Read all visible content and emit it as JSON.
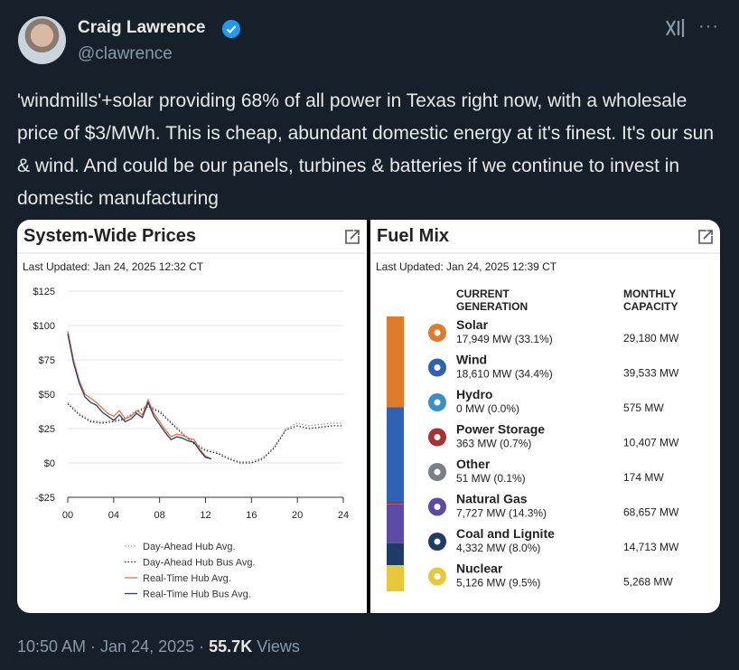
{
  "tweet": {
    "name": "Craig Lawrence",
    "handle": "@clawrence",
    "text": "'windmills'+solar providing 68% of all power in Texas right now, with a wholesale price of $3/MWh. This is cheap, abundant domestic energy at it's finest. It's our sun & wind. And could be our panels, turbines & batteries if we continue to invest in domestic manufacturing",
    "date_line": "10:50 AM · Jan 24, 2025 ·",
    "views": "55.7K",
    "views_label": "Views"
  },
  "chart_data": [
    {
      "type": "line",
      "title": "System-Wide Prices",
      "subtitle": "Last Updated: Jan 24, 2025 12:32 CT",
      "xlim": [
        0,
        24
      ],
      "xticks": [
        {
          "value": 0,
          "label": "00"
        },
        {
          "value": 4,
          "label": "04"
        },
        {
          "value": 8,
          "label": "08"
        },
        12,
        16,
        20,
        24
      ],
      "ylim": [
        -25,
        125
      ],
      "yticks": [
        {
          "value": -25,
          "label": "-$25"
        },
        {
          "value": 0,
          "label": "$0"
        },
        {
          "value": 25,
          "label": "$25"
        },
        {
          "value": 50,
          "label": "$50"
        },
        {
          "value": 75,
          "label": "$75"
        },
        {
          "value": 100,
          "label": "$100"
        },
        {
          "value": 125,
          "label": "$125"
        }
      ],
      "grid": true,
      "series": [
        {
          "name": "Day-Ahead Hub Avg.",
          "color": "#9a9a9a",
          "style": "dotted",
          "x": [
            0,
            1,
            2,
            3,
            4,
            5,
            6,
            7,
            8,
            9,
            10,
            11,
            12,
            13,
            14,
            15,
            16,
            17,
            18,
            19,
            20,
            21,
            22,
            23,
            24
          ],
          "values": [
            44,
            36,
            31,
            30,
            31,
            33,
            38,
            42,
            38,
            30,
            22,
            15,
            10,
            8,
            4,
            1,
            1,
            4,
            12,
            25,
            29,
            27,
            28,
            29,
            29
          ]
        },
        {
          "name": "Day-Ahead Hub Bus Avg.",
          "color": "#222222",
          "style": "dotted",
          "x": [
            0,
            1,
            2,
            3,
            4,
            5,
            6,
            7,
            8,
            9,
            10,
            11,
            12,
            13,
            14,
            15,
            16,
            17,
            18,
            19,
            20,
            21,
            22,
            23,
            24
          ],
          "values": [
            43,
            35,
            30,
            29,
            30,
            32,
            37,
            41,
            37,
            29,
            21,
            14,
            9,
            7,
            3,
            0,
            0,
            3,
            11,
            24,
            27,
            25,
            26,
            27,
            27
          ]
        },
        {
          "name": "Real-Time Hub Avg.",
          "color": "#e8743b",
          "style": "solid",
          "x": [
            0,
            0.5,
            1,
            1.5,
            2,
            2.5,
            3,
            3.5,
            4,
            4.5,
            5,
            5.5,
            6,
            6.5,
            7,
            7.5,
            8,
            8.5,
            9,
            9.5,
            10,
            10.5,
            11,
            11.5,
            12,
            12.5
          ],
          "values": [
            96,
            75,
            60,
            50,
            47,
            44,
            40,
            36,
            34,
            38,
            32,
            34,
            38,
            35,
            46,
            36,
            30,
            24,
            19,
            21,
            20,
            18,
            17,
            10,
            5,
            3
          ]
        },
        {
          "name": "Real-Time Hub Bus Avg.",
          "color": "#2b3d6b",
          "style": "solid",
          "x": [
            0,
            0.5,
            1,
            1.5,
            2,
            2.5,
            3,
            3.5,
            4,
            4.5,
            5,
            5.5,
            6,
            6.5,
            7,
            7.5,
            8,
            8.5,
            9,
            9.5,
            10,
            10.5,
            11,
            11.5,
            12,
            12.5
          ],
          "values": [
            94,
            73,
            58,
            48,
            44,
            42,
            37,
            34,
            31,
            35,
            30,
            32,
            36,
            33,
            44,
            34,
            28,
            22,
            17,
            19,
            18,
            16,
            15,
            9,
            4,
            3
          ]
        }
      ]
    },
    {
      "type": "fuel_mix",
      "title": "Fuel Mix",
      "subtitle": "Last Updated: Jan 24, 2025 12:39 CT",
      "col_generation": [
        "CURRENT",
        "GENERATION"
      ],
      "col_capacity": [
        "MONTHLY",
        "CAPACITY"
      ],
      "items": [
        {
          "name": "Solar",
          "generation": "17,949 MW (33.1%)",
          "share": 33.1,
          "capacity": "29,180 MW",
          "color": "#e07b2e"
        },
        {
          "name": "Wind",
          "generation": "18,610 MW (34.4%)",
          "share": 34.4,
          "capacity": "39,533 MW",
          "color": "#2f62b5"
        },
        {
          "name": "Hydro",
          "generation": "0 MW (0.0%)",
          "share": 0,
          "capacity": "575 MW",
          "color": "#3a8fc9"
        },
        {
          "name": "Power Storage",
          "generation": "363 MW (0.7%)",
          "share": 0.7,
          "capacity": "10,407 MW",
          "color": "#a83232"
        },
        {
          "name": "Other",
          "generation": "51 MW (0.1%)",
          "share": 0.1,
          "capacity": "174 MW",
          "color": "#7a8088"
        },
        {
          "name": "Natural Gas",
          "generation": "7,727 MW (14.3%)",
          "share": 14.3,
          "capacity": "68,657 MW",
          "color": "#5c4aa5"
        },
        {
          "name": "Coal and Lignite",
          "generation": "4,332 MW (8.0%)",
          "share": 8.0,
          "capacity": "14,713 MW",
          "color": "#1e3c66"
        },
        {
          "name": "Nuclear",
          "generation": "5,126 MW (9.5%)",
          "share": 9.5,
          "capacity": "5,268 MW",
          "color": "#e6c93b"
        }
      ]
    }
  ]
}
